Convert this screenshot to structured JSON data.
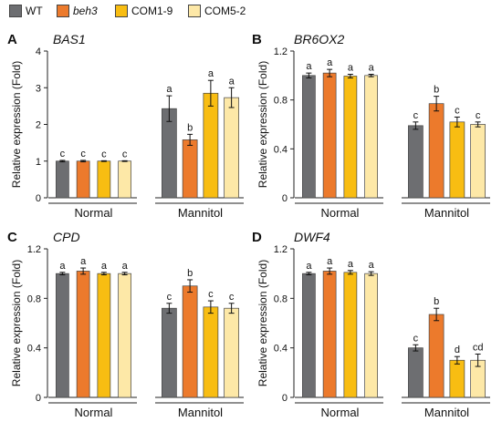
{
  "legend": {
    "items": [
      {
        "label": "WT",
        "italic": false,
        "color": "#6d6e71"
      },
      {
        "label": "beh3",
        "italic": true,
        "color": "#ec7a2c"
      },
      {
        "label": "COM1-9",
        "italic": false,
        "color": "#f8bd12"
      },
      {
        "label": "COM5-2",
        "italic": false,
        "color": "#fde8a7"
      }
    ]
  },
  "chart_data": [
    {
      "type": "bar",
      "panel_letter": "A",
      "title": "BAS1",
      "ylabel": "Relative expression (Fold)",
      "ylim": [
        0,
        4
      ],
      "yticks": [
        "0",
        "1",
        "2",
        "3",
        "4"
      ],
      "groups": [
        "Normal",
        "Mannitol"
      ],
      "series": [
        {
          "name": "WT",
          "values": [
            1.0,
            2.43
          ],
          "errors": [
            0.02,
            0.35
          ]
        },
        {
          "name": "beh3",
          "values": [
            1.0,
            1.58
          ],
          "errors": [
            0.02,
            0.15
          ]
        },
        {
          "name": "COM1-9",
          "values": [
            1.0,
            2.85
          ],
          "errors": [
            0.01,
            0.35
          ]
        },
        {
          "name": "COM5-2",
          "values": [
            1.0,
            2.73
          ],
          "errors": [
            0.01,
            0.27
          ]
        }
      ],
      "letters": [
        [
          "c",
          "c",
          "c",
          "c"
        ],
        [
          "a",
          "b",
          "a",
          "a"
        ]
      ]
    },
    {
      "type": "bar",
      "panel_letter": "B",
      "title": "BR6OX2",
      "ylabel": "Relative expression (Fold)",
      "ylim": [
        0,
        1.2
      ],
      "yticks": [
        "0",
        "0.4",
        "0.8",
        "1.2"
      ],
      "groups": [
        "Normal",
        "Mannitol"
      ],
      "series": [
        {
          "name": "WT",
          "values": [
            1.0,
            0.59
          ],
          "errors": [
            0.02,
            0.03
          ]
        },
        {
          "name": "beh3",
          "values": [
            1.02,
            0.77
          ],
          "errors": [
            0.03,
            0.06
          ]
        },
        {
          "name": "COM1-9",
          "values": [
            0.995,
            0.62
          ],
          "errors": [
            0.015,
            0.04
          ]
        },
        {
          "name": "COM5-2",
          "values": [
            1.0,
            0.6
          ],
          "errors": [
            0.01,
            0.02
          ]
        }
      ],
      "letters": [
        [
          "a",
          "a",
          "a",
          "a"
        ],
        [
          "c",
          "b",
          "c",
          "c"
        ]
      ]
    },
    {
      "type": "bar",
      "panel_letter": "C",
      "title": "CPD",
      "ylabel": "Relative expression (Fold)",
      "ylim": [
        0,
        1.2
      ],
      "yticks": [
        "0",
        "0.4",
        "0.8",
        "1.2"
      ],
      "groups": [
        "Normal",
        "Mannitol"
      ],
      "series": [
        {
          "name": "WT",
          "values": [
            1.0,
            0.72
          ],
          "errors": [
            0.01,
            0.04
          ]
        },
        {
          "name": "beh3",
          "values": [
            1.02,
            0.9
          ],
          "errors": [
            0.025,
            0.05
          ]
        },
        {
          "name": "COM1-9",
          "values": [
            1.0,
            0.73
          ],
          "errors": [
            0.01,
            0.05
          ]
        },
        {
          "name": "COM5-2",
          "values": [
            1.0,
            0.72
          ],
          "errors": [
            0.01,
            0.04
          ]
        }
      ],
      "letters": [
        [
          "a",
          "a",
          "a",
          "a"
        ],
        [
          "c",
          "b",
          "c",
          "c"
        ]
      ]
    },
    {
      "type": "bar",
      "panel_letter": "D",
      "title": "DWF4",
      "ylabel": "Relative expression (Fold)",
      "ylim": [
        0,
        1.2
      ],
      "yticks": [
        "0",
        "0.4",
        "0.8",
        "1.2"
      ],
      "groups": [
        "Normal",
        "Mannitol"
      ],
      "series": [
        {
          "name": "WT",
          "values": [
            1.0,
            0.4
          ],
          "errors": [
            0.01,
            0.025
          ]
        },
        {
          "name": "beh3",
          "values": [
            1.02,
            0.67
          ],
          "errors": [
            0.025,
            0.05
          ]
        },
        {
          "name": "COM1-9",
          "values": [
            1.01,
            0.3
          ],
          "errors": [
            0.015,
            0.03
          ]
        },
        {
          "name": "COM5-2",
          "values": [
            1.0,
            0.3
          ],
          "errors": [
            0.015,
            0.05
          ]
        }
      ],
      "letters": [
        [
          "a",
          "a",
          "a",
          "a"
        ],
        [
          "c",
          "b",
          "d",
          "cd"
        ]
      ]
    }
  ]
}
